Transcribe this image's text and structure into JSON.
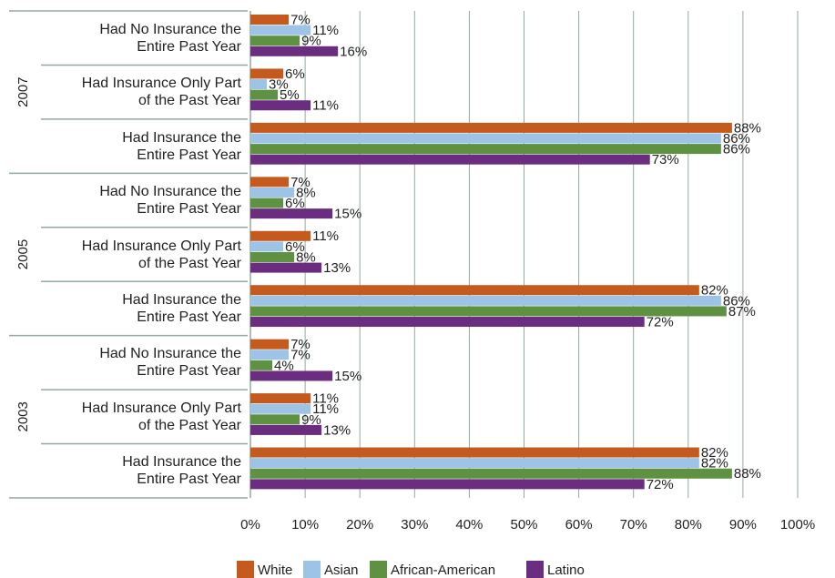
{
  "chart_data": {
    "type": "bar",
    "orientation": "horizontal",
    "groups": [
      "2007",
      "2005",
      "2003"
    ],
    "categories": [
      "Had No Insurance the\nEntire Past Year",
      "Had Insurance Only Part\nof the Past Year",
      "Had Insurance the\nEntire Past Year",
      "Had No Insurance the\nEntire Past Year",
      "Had Insurance Only Part\nof the Past Year",
      "Had Insurance the\nEntire Past Year",
      "Had No Insurance the\nEntire Past Year",
      "Had Insurance Only Part\nof the Past Year",
      "Had Insurance the\nEntire Past Year"
    ],
    "series": [
      {
        "name": "White",
        "color": "#c55a1e",
        "values": [
          7,
          6,
          88,
          7,
          11,
          82,
          7,
          11,
          82
        ],
        "value_labels": [
          "7%",
          "6%",
          "88%",
          "7%",
          "11%",
          "82%",
          "7%",
          "11%",
          "82%"
        ]
      },
      {
        "name": "Asian",
        "color": "#9dc3e6",
        "values": [
          11,
          3,
          86,
          8,
          6,
          86,
          7,
          11,
          82
        ],
        "value_labels": [
          "11%",
          "3%",
          "86%",
          "8%",
          "6%",
          "86%",
          "7%",
          "11%",
          "82%"
        ]
      },
      {
        "name": "African-American",
        "color": "#5e9141",
        "values": [
          9,
          5,
          86,
          6,
          8,
          87,
          4,
          9,
          88
        ],
        "value_labels": [
          "9%",
          "5%",
          "86%",
          "6%",
          "8%",
          "87%",
          "4%",
          "9%",
          "88%"
        ]
      },
      {
        "name": "Latino",
        "color": "#6b2d80",
        "values": [
          16,
          11,
          73,
          15,
          13,
          72,
          15,
          13,
          72
        ],
        "value_labels": [
          "16%",
          "11%",
          "73%",
          "15%",
          "13%",
          "72%",
          "15%",
          "13%",
          "72%"
        ]
      }
    ],
    "xlim": [
      0,
      100
    ],
    "xticks": [
      {
        "value": 0,
        "label": "0%"
      },
      {
        "value": 10,
        "label": "10%"
      },
      {
        "value": 20,
        "label": "20%"
      },
      {
        "value": 30,
        "label": "30%"
      },
      {
        "value": 40,
        "label": "40%"
      },
      {
        "value": 50,
        "label": "50%"
      },
      {
        "value": 60,
        "label": "60%"
      },
      {
        "value": 70,
        "label": "70%"
      },
      {
        "value": 80,
        "label": "80%"
      },
      {
        "value": 90,
        "label": "90%"
      },
      {
        "value": 100,
        "label": "100%"
      }
    ],
    "grid": true,
    "legend": "bottom"
  }
}
